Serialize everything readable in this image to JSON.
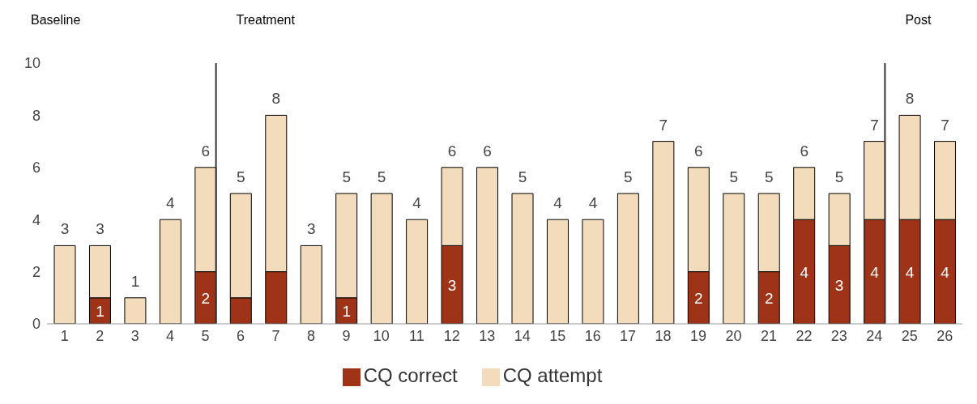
{
  "chart_data": {
    "type": "bar",
    "stacked": true,
    "x": [
      1,
      2,
      3,
      4,
      5,
      6,
      7,
      8,
      9,
      10,
      11,
      12,
      13,
      14,
      15,
      16,
      17,
      18,
      19,
      20,
      21,
      22,
      23,
      24,
      25,
      26
    ],
    "xlim": [
      0.5,
      26.5
    ],
    "xticks": [
      1,
      2,
      3,
      4,
      5,
      6,
      7,
      8,
      9,
      10,
      11,
      12,
      13,
      14,
      15,
      16,
      17,
      18,
      19,
      20,
      21,
      22,
      23,
      24,
      25,
      26
    ],
    "ylim": [
      0,
      10
    ],
    "yticks": [
      0,
      2,
      4,
      6,
      8,
      10
    ],
    "grid": false,
    "legend": "bottom",
    "series": [
      {
        "name": "CQ correct",
        "color": "#9e3317",
        "values": [
          0,
          1,
          0,
          0,
          2,
          1,
          2,
          0,
          1,
          0,
          0,
          3,
          0,
          0,
          0,
          0,
          0,
          0,
          2,
          0,
          2,
          4,
          3,
          4,
          4,
          4
        ],
        "value_labels": [
          null,
          "1",
          null,
          null,
          "2",
          null,
          null,
          null,
          "1",
          null,
          null,
          "3",
          null,
          null,
          null,
          null,
          null,
          null,
          "2",
          null,
          "2",
          "4",
          "3",
          "4",
          "4",
          "4"
        ]
      },
      {
        "name": "CQ attempt",
        "color": "#f2dcbb",
        "values": [
          3,
          2,
          1,
          4,
          4,
          4,
          6,
          3,
          4,
          5,
          4,
          3,
          6,
          5,
          4,
          4,
          5,
          7,
          4,
          5,
          3,
          2,
          2,
          3,
          4,
          3
        ]
      }
    ],
    "totals": [
      "3",
      "3",
      "1",
      "4",
      "6",
      "5",
      "8",
      "3",
      "5",
      "5",
      "4",
      "6",
      "6",
      "5",
      "4",
      "4",
      "5",
      "7",
      "6",
      "5",
      "5",
      "6",
      "5",
      "7",
      "8",
      "7"
    ],
    "ref_lines": [
      {
        "axis": "x",
        "value": 5.3,
        "color": "#333333"
      },
      {
        "axis": "x",
        "value": 24.3,
        "color": "#333333"
      }
    ],
    "annotations": [
      "Baseline",
      "Treatment",
      "Post"
    ]
  }
}
